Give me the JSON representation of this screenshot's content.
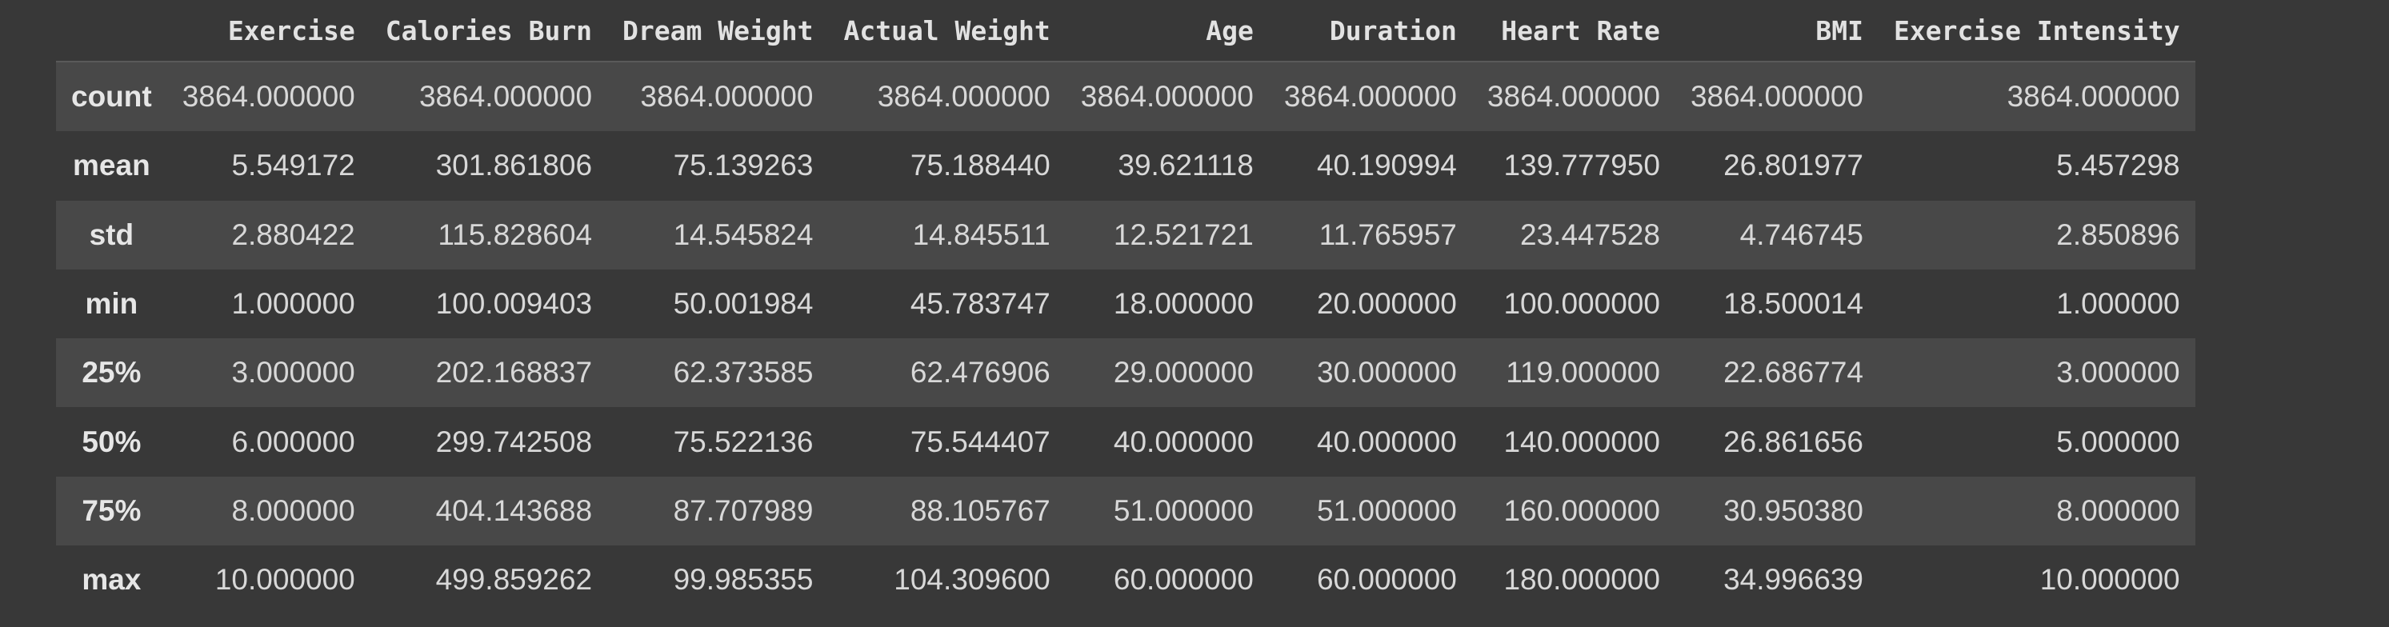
{
  "table": {
    "columns": [
      "Exercise",
      "Calories Burn",
      "Dream Weight",
      "Actual Weight",
      "Age",
      "Duration",
      "Heart Rate",
      "BMI",
      "Exercise Intensity"
    ],
    "rows": [
      {
        "label": "count",
        "values": [
          "3864.000000",
          "3864.000000",
          "3864.000000",
          "3864.000000",
          "3864.000000",
          "3864.000000",
          "3864.000000",
          "3864.000000",
          "3864.000000"
        ]
      },
      {
        "label": "mean",
        "values": [
          "5.549172",
          "301.861806",
          "75.139263",
          "75.188440",
          "39.621118",
          "40.190994",
          "139.777950",
          "26.801977",
          "5.457298"
        ]
      },
      {
        "label": "std",
        "values": [
          "2.880422",
          "115.828604",
          "14.545824",
          "14.845511",
          "12.521721",
          "11.765957",
          "23.447528",
          "4.746745",
          "2.850896"
        ]
      },
      {
        "label": "min",
        "values": [
          "1.000000",
          "100.009403",
          "50.001984",
          "45.783747",
          "18.000000",
          "20.000000",
          "100.000000",
          "18.500014",
          "1.000000"
        ]
      },
      {
        "label": "25%",
        "values": [
          "3.000000",
          "202.168837",
          "62.373585",
          "62.476906",
          "29.000000",
          "30.000000",
          "119.000000",
          "22.686774",
          "3.000000"
        ]
      },
      {
        "label": "50%",
        "values": [
          "6.000000",
          "299.742508",
          "75.522136",
          "75.544407",
          "40.000000",
          "40.000000",
          "140.000000",
          "26.861656",
          "5.000000"
        ]
      },
      {
        "label": "75%",
        "values": [
          "8.000000",
          "404.143688",
          "87.707989",
          "88.105767",
          "51.000000",
          "51.000000",
          "160.000000",
          "30.950380",
          "8.000000"
        ]
      },
      {
        "label": "max",
        "values": [
          "10.000000",
          "499.859262",
          "99.985355",
          "104.309600",
          "60.000000",
          "60.000000",
          "180.000000",
          "34.996639",
          "10.000000"
        ]
      }
    ]
  },
  "colors": {
    "background": "#383838",
    "row_stripe": "#484848",
    "text": "#d8d8d8",
    "header_text": "#e2e2e2"
  }
}
